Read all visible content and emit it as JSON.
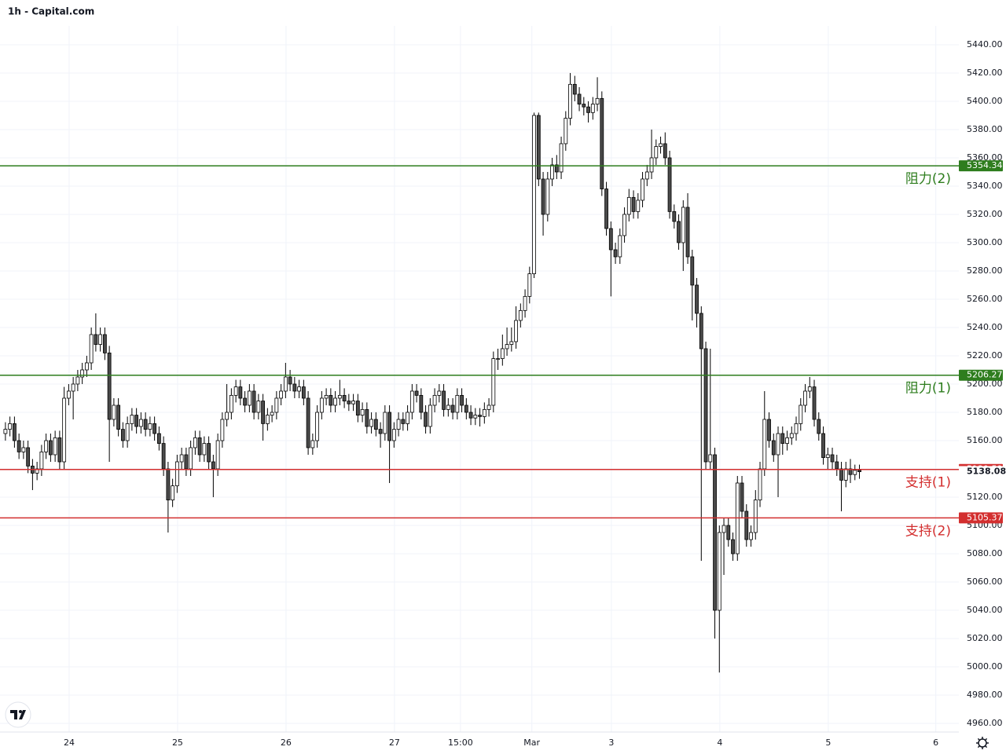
{
  "chart_data": {
    "type": "candlestick",
    "title": "1h - Capital.com",
    "xlim": [
      -1.2,
      211
    ],
    "xticks": [
      {
        "value": 14.1,
        "label": "24"
      },
      {
        "value": 38.1,
        "label": "25"
      },
      {
        "value": 62.1,
        "label": "26"
      },
      {
        "value": 86.1,
        "label": "27"
      },
      {
        "value": 100.7,
        "label": "15:00"
      },
      {
        "value": 116.5,
        "label": "Mar"
      },
      {
        "value": 134.1,
        "label": "3"
      },
      {
        "value": 158.1,
        "label": "4"
      },
      {
        "value": 182.1,
        "label": "5"
      },
      {
        "value": 205.9,
        "label": "6"
      }
    ],
    "ylim": [
      4953.9,
      5453.3
    ],
    "yticks": [
      {
        "value": 4960,
        "label": "4960.00"
      },
      {
        "value": 4980,
        "label": "4980.00"
      },
      {
        "value": 5000,
        "label": "5000.00"
      },
      {
        "value": 5020,
        "label": "5020.00"
      },
      {
        "value": 5040,
        "label": "5040.00"
      },
      {
        "value": 5060,
        "label": "5060.00"
      },
      {
        "value": 5080,
        "label": "5080.00"
      },
      {
        "value": 5100,
        "label": "5100.00"
      },
      {
        "value": 5120,
        "label": "5120.00"
      },
      {
        "value": 5140,
        "label": "5140.00"
      },
      {
        "value": 5160,
        "label": "5160.00"
      },
      {
        "value": 5180,
        "label": "5180.00"
      },
      {
        "value": 5200,
        "label": "5200.00"
      },
      {
        "value": 5220,
        "label": "5220.00"
      },
      {
        "value": 5240,
        "label": "5240.00"
      },
      {
        "value": 5260,
        "label": "5260.00"
      },
      {
        "value": 5280,
        "label": "5280.00"
      },
      {
        "value": 5300,
        "label": "5300.00"
      },
      {
        "value": 5320,
        "label": "5320.00"
      },
      {
        "value": 5340,
        "label": "5340.00"
      },
      {
        "value": 5360,
        "label": "5360.00"
      },
      {
        "value": 5380,
        "label": "5380.00"
      },
      {
        "value": 5400,
        "label": "5400.00"
      },
      {
        "value": 5420,
        "label": "5420.00"
      },
      {
        "value": 5440,
        "label": "5440.00"
      }
    ],
    "grid": true,
    "up_color": "#ffffff",
    "down_color": "#4a4a4a",
    "border_color": "#000000",
    "last_price": 5138.08,
    "levels": [
      {
        "value": 5354.34,
        "label": "阻力(2)",
        "color": "#2e7d1e"
      },
      {
        "value": 5206.27,
        "label": "阻力(1)",
        "color": "#2e7d1e"
      },
      {
        "value": 5139.59,
        "label": "支持(1)",
        "color": "#d32f2f"
      },
      {
        "value": 5105.37,
        "label": "支持(2)",
        "color": "#d32f2f"
      }
    ],
    "open": [
      5165,
      5168,
      5172,
      5160,
      5152,
      5155,
      5142,
      5137,
      5140,
      5152,
      5160,
      5150,
      5162,
      5145,
      5190,
      5195,
      5200,
      5205,
      5210,
      5215,
      5235,
      5228,
      5235,
      5222,
      5175,
      5185,
      5168,
      5160,
      5172,
      5178,
      5170,
      5175,
      5168,
      5172,
      5165,
      5158,
      5140,
      5118,
      5128,
      5145,
      5150,
      5140,
      5155,
      5162,
      5150,
      5158,
      5145,
      5140,
      5160,
      5175,
      5180,
      5192,
      5198,
      5190,
      5185,
      5195,
      5180,
      5188,
      5172,
      5178,
      5180,
      5190,
      5195,
      5205,
      5200,
      5195,
      5198,
      5190,
      5155,
      5160,
      5180,
      5190,
      5192,
      5185,
      5190,
      5192,
      5188,
      5186,
      5188,
      5178,
      5182,
      5170,
      5175,
      5168,
      5165,
      5180,
      5160,
      5168,
      5175,
      5172,
      5180,
      5195,
      5192,
      5180,
      5170,
      5185,
      5192,
      5195,
      5182,
      5185,
      5180,
      5192,
      5185,
      5180,
      5176,
      5178,
      5177,
      5182,
      5185,
      5218,
      5218,
      5225,
      5228,
      5230,
      5245,
      5252,
      5262,
      5278,
      5390,
      5345,
      5320,
      5345,
      5355,
      5350,
      5370,
      5388,
      5412,
      5405,
      5398,
      5396,
      5392,
      5398,
      5402,
      5338,
      5310,
      5295,
      5290,
      5305,
      5320,
      5332,
      5322,
      5330,
      5345,
      5350,
      5360,
      5368,
      5370,
      5360,
      5322,
      5315,
      5300,
      5325,
      5290,
      5270,
      5250,
      5225,
      5145,
      5150,
      5040,
      5095,
      5100,
      5090,
      5080,
      5130,
      5110,
      5090,
      5095,
      5118,
      5140,
      5175,
      5160,
      5150,
      5165,
      5158,
      5162,
      5165,
      5172,
      5185,
      5195,
      5198,
      5175,
      5165,
      5148,
      5150,
      5145,
      5140,
      5132,
      5140,
      5136,
      5139
    ],
    "high": [
      5173,
      5177,
      5177,
      5165,
      5160,
      5160,
      5147,
      5145,
      5157,
      5165,
      5165,
      5167,
      5167,
      5198,
      5200,
      5205,
      5210,
      5215,
      5220,
      5240,
      5250,
      5240,
      5240,
      5227,
      5190,
      5190,
      5173,
      5177,
      5183,
      5183,
      5180,
      5180,
      5177,
      5177,
      5170,
      5163,
      5145,
      5133,
      5150,
      5155,
      5155,
      5160,
      5167,
      5167,
      5163,
      5163,
      5150,
      5165,
      5180,
      5200,
      5197,
      5203,
      5203,
      5195,
      5200,
      5200,
      5193,
      5193,
      5183,
      5185,
      5195,
      5200,
      5215,
      5210,
      5205,
      5203,
      5203,
      5195,
      5165,
      5185,
      5195,
      5197,
      5197,
      5195,
      5203,
      5197,
      5193,
      5193,
      5193,
      5187,
      5187,
      5180,
      5180,
      5173,
      5185,
      5185,
      5173,
      5180,
      5180,
      5185,
      5200,
      5200,
      5197,
      5185,
      5190,
      5197,
      5200,
      5200,
      5190,
      5190,
      5197,
      5197,
      5190,
      5185,
      5183,
      5183,
      5187,
      5190,
      5223,
      5225,
      5235,
      5240,
      5240,
      5255,
      5257,
      5267,
      5283,
      5392,
      5392,
      5350,
      5350,
      5360,
      5362,
      5375,
      5393,
      5420,
      5418,
      5410,
      5403,
      5400,
      5403,
      5417,
      5407,
      5343,
      5315,
      5300,
      5310,
      5325,
      5338,
      5337,
      5335,
      5350,
      5355,
      5380,
      5373,
      5375,
      5378,
      5365,
      5327,
      5320,
      5330,
      5335,
      5295,
      5275,
      5255,
      5230,
      5225,
      5155,
      5100,
      5105,
      5105,
      5095,
      5135,
      5135,
      5115,
      5100,
      5125,
      5145,
      5195,
      5180,
      5165,
      5170,
      5170,
      5167,
      5170,
      5177,
      5190,
      5200,
      5205,
      5203,
      5180,
      5170,
      5155,
      5155,
      5150,
      5145,
      5145,
      5147,
      5143,
      5143
    ],
    "low": [
      5160,
      5163,
      5155,
      5147,
      5147,
      5137,
      5125,
      5132,
      5135,
      5147,
      5145,
      5145,
      5140,
      5140,
      5185,
      5175,
      5195,
      5200,
      5205,
      5210,
      5223,
      5223,
      5217,
      5145,
      5170,
      5163,
      5155,
      5155,
      5167,
      5165,
      5165,
      5163,
      5163,
      5160,
      5153,
      5135,
      5095,
      5113,
      5123,
      5140,
      5135,
      5135,
      5150,
      5145,
      5145,
      5140,
      5120,
      5135,
      5155,
      5170,
      5175,
      5187,
      5185,
      5180,
      5180,
      5175,
      5175,
      5160,
      5167,
      5173,
      5175,
      5185,
      5190,
      5195,
      5190,
      5190,
      5185,
      5150,
      5150,
      5155,
      5175,
      5185,
      5180,
      5180,
      5185,
      5183,
      5181,
      5181,
      5173,
      5173,
      5165,
      5165,
      5163,
      5155,
      5160,
      5130,
      5155,
      5163,
      5167,
      5167,
      5175,
      5187,
      5175,
      5165,
      5165,
      5180,
      5187,
      5177,
      5177,
      5175,
      5175,
      5180,
      5175,
      5171,
      5171,
      5170,
      5172,
      5177,
      5180,
      5210,
      5213,
      5220,
      5223,
      5225,
      5240,
      5247,
      5257,
      5275,
      5340,
      5305,
      5315,
      5340,
      5345,
      5345,
      5365,
      5383,
      5400,
      5393,
      5390,
      5385,
      5387,
      5393,
      5333,
      5305,
      5262,
      5285,
      5285,
      5300,
      5315,
      5317,
      5317,
      5325,
      5340,
      5345,
      5355,
      5363,
      5355,
      5317,
      5310,
      5295,
      5280,
      5285,
      5245,
      5240,
      5075,
      5140,
      5140,
      5020,
      4996,
      5065,
      5085,
      5075,
      5075,
      5105,
      5085,
      5085,
      5090,
      5113,
      5135,
      5155,
      5145,
      5120,
      5150,
      5153,
      5157,
      5160,
      5167,
      5180,
      5190,
      5170,
      5160,
      5143,
      5140,
      5140,
      5135,
      5110,
      5127,
      5130,
      5132,
      5133
    ],
    "close": [
      5168,
      5172,
      5160,
      5152,
      5155,
      5142,
      5137,
      5140,
      5152,
      5160,
      5150,
      5162,
      5145,
      5190,
      5195,
      5200,
      5205,
      5210,
      5215,
      5235,
      5228,
      5235,
      5222,
      5175,
      5185,
      5168,
      5160,
      5172,
      5178,
      5170,
      5175,
      5168,
      5172,
      5165,
      5158,
      5140,
      5118,
      5128,
      5145,
      5150,
      5140,
      5155,
      5162,
      5150,
      5158,
      5145,
      5140,
      5160,
      5175,
      5180,
      5192,
      5198,
      5190,
      5185,
      5195,
      5180,
      5188,
      5172,
      5178,
      5180,
      5190,
      5195,
      5205,
      5200,
      5195,
      5198,
      5190,
      5155,
      5160,
      5180,
      5190,
      5192,
      5185,
      5190,
      5192,
      5188,
      5186,
      5188,
      5178,
      5182,
      5170,
      5175,
      5168,
      5165,
      5180,
      5160,
      5168,
      5175,
      5172,
      5180,
      5195,
      5192,
      5180,
      5170,
      5185,
      5192,
      5195,
      5182,
      5185,
      5180,
      5192,
      5185,
      5180,
      5176,
      5178,
      5177,
      5182,
      5185,
      5218,
      5218,
      5225,
      5228,
      5230,
      5245,
      5252,
      5262,
      5278,
      5390,
      5345,
      5320,
      5345,
      5355,
      5350,
      5370,
      5388,
      5412,
      5405,
      5398,
      5396,
      5392,
      5398,
      5402,
      5338,
      5310,
      5295,
      5290,
      5305,
      5320,
      5332,
      5322,
      5330,
      5345,
      5350,
      5360,
      5368,
      5370,
      5360,
      5322,
      5315,
      5300,
      5325,
      5290,
      5270,
      5250,
      5225,
      5145,
      5150,
      5040,
      5095,
      5100,
      5090,
      5080,
      5130,
      5110,
      5090,
      5095,
      5118,
      5140,
      5175,
      5160,
      5150,
      5165,
      5158,
      5162,
      5165,
      5172,
      5185,
      5195,
      5198,
      5175,
      5165,
      5148,
      5150,
      5145,
      5140,
      5132,
      5140,
      5136,
      5139,
      5138
    ]
  }
}
